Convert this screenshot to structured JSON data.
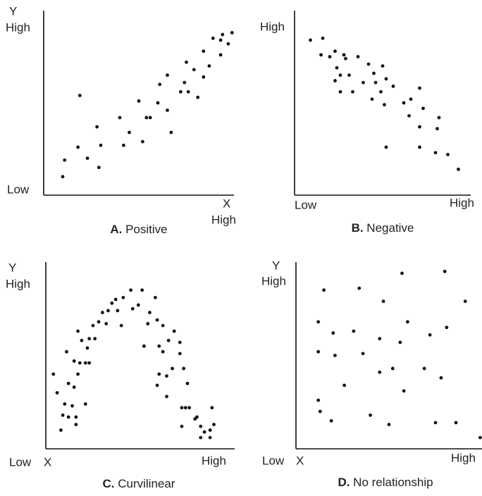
{
  "chart_data": [
    {
      "type": "scatter",
      "label": "A.",
      "title": "Positive",
      "y_label": "Y",
      "y_high": "High",
      "y_low": "Low",
      "x_label": "X",
      "x_high": "High",
      "color": "#111111",
      "xlim": [
        0,
        100
      ],
      "ylim": [
        0,
        100
      ],
      "x": [
        10,
        11,
        18,
        19,
        23,
        28,
        29,
        30,
        40,
        42,
        45,
        50,
        52,
        54,
        56,
        60,
        61,
        65,
        65,
        67,
        72,
        74,
        75,
        76,
        79,
        81,
        84,
        84,
        87,
        89,
        93,
        93,
        94,
        97,
        99
      ],
      "values": [
        10,
        19,
        26,
        54,
        20,
        37,
        15,
        27,
        42,
        27,
        34,
        51,
        29,
        42,
        42,
        50,
        60,
        65,
        46,
        34,
        56,
        61,
        72,
        56,
        68,
        53,
        78,
        64,
        70,
        85,
        84,
        76,
        87,
        82,
        88
      ]
    },
    {
      "type": "scatter",
      "label": "B.",
      "title": "Negative",
      "y_high": "High",
      "x_low": "Low",
      "x_high": "High",
      "color": "#111111",
      "xlim": [
        0,
        100
      ],
      "ylim": [
        0,
        100
      ],
      "x": [
        9,
        16,
        15,
        20,
        23,
        28,
        24,
        29,
        36,
        26,
        31,
        23,
        26,
        33,
        39,
        42,
        45,
        50,
        46,
        44,
        49,
        52,
        56,
        51,
        62,
        66,
        71,
        65,
        73,
        71,
        82,
        81,
        52,
        71,
        80,
        87,
        93
      ],
      "values": [
        84,
        85,
        76,
        75,
        78,
        76,
        69,
        74,
        75,
        65,
        65,
        62,
        56,
        56,
        61,
        71,
        66,
        70,
        61,
        52,
        56,
        63,
        59,
        49,
        50,
        52,
        58,
        43,
        47,
        37,
        42,
        36,
        26,
        26,
        23,
        22,
        14
      ]
    },
    {
      "type": "scatter",
      "label": "C.",
      "title": "Curvilinear",
      "y_label": "Y",
      "y_high": "High",
      "y_low": "Low",
      "x_label": "X",
      "x_high": "High",
      "color": "#111111",
      "xlim": [
        0,
        100
      ],
      "ylim": [
        0,
        100
      ],
      "x": [
        4,
        6,
        8,
        9,
        10,
        11,
        12,
        12,
        14,
        15,
        15,
        16,
        16,
        17,
        17,
        18,
        19,
        21,
        21,
        22,
        23,
        23,
        25,
        26,
        28,
        30,
        32,
        33,
        35,
        37,
        38,
        40,
        41,
        45,
        46,
        49,
        51,
        52,
        54,
        55,
        58,
        59,
        60,
        62,
        62,
        64,
        65,
        67,
        68,
        60,
        59,
        64,
        71,
        71,
        73,
        72,
        75,
        74,
        76,
        79,
        72,
        80,
        82,
        84,
        82,
        87,
        88,
        89,
        87
      ],
      "values": [
        40,
        30,
        10,
        18,
        24,
        52,
        35,
        17,
        23,
        47,
        33,
        13,
        17,
        63,
        40,
        46,
        58,
        24,
        46,
        54,
        46,
        59,
        66,
        59,
        68,
        73,
        67,
        74,
        78,
        80,
        74,
        66,
        81,
        85,
        75,
        77,
        85,
        55,
        67,
        73,
        81,
        69,
        55,
        66,
        52,
        39,
        58,
        43,
        63,
        40,
        34,
        28,
        57,
        51,
        43,
        22,
        35,
        22,
        22,
        16,
        12,
        17,
        12,
        9,
        6,
        10,
        22,
        13,
        6
      ]
    },
    {
      "type": "scatter",
      "label": "D.",
      "title": "No relationship",
      "y_label": "Y",
      "y_high": "High",
      "y_low": "Low",
      "x_label": "X",
      "x_high": "High",
      "color": "#111111",
      "xlim": [
        0,
        100
      ],
      "ylim": [
        0,
        100
      ],
      "x": [
        15,
        34,
        57,
        80,
        47,
        91,
        12,
        20,
        31,
        60,
        81,
        45,
        12,
        21,
        36,
        56,
        72,
        52,
        45,
        69,
        78,
        26,
        58,
        12,
        13,
        19,
        40,
        50,
        75,
        86,
        99
      ],
      "values": [
        85,
        86,
        94,
        95,
        79,
        79,
        68,
        62,
        63,
        68,
        65,
        59,
        52,
        50,
        51,
        57,
        61,
        43,
        41,
        43,
        38,
        34,
        31,
        26,
        20,
        15,
        18,
        13,
        14,
        14,
        6
      ]
    }
  ]
}
